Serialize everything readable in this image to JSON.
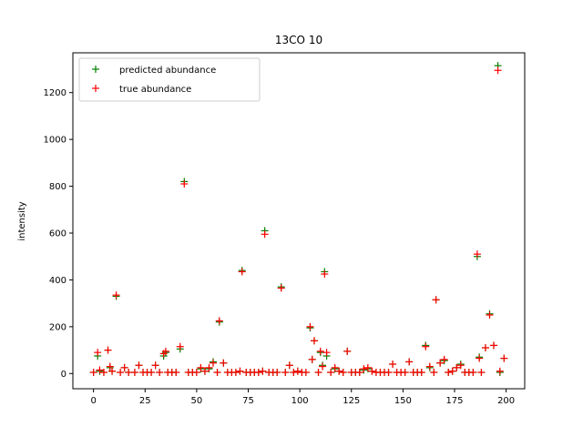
{
  "chart_data": {
    "type": "scatter",
    "title": "13CO 10",
    "xlabel": "",
    "ylabel": "intensity",
    "xlim": [
      -10,
      209
    ],
    "ylim": [
      -65,
      1370
    ],
    "xticks": [
      0,
      25,
      50,
      75,
      100,
      125,
      150,
      175,
      200
    ],
    "yticks": [
      0,
      200,
      400,
      600,
      800,
      1000,
      1200
    ],
    "grid": false,
    "legend_position": "upper-left",
    "marker": "+",
    "series": [
      {
        "name": "predicted abundance",
        "color": "#008000",
        "x": [
          0,
          2,
          3,
          5,
          7,
          8,
          9,
          11,
          13,
          15,
          17,
          20,
          22,
          24,
          26,
          28,
          30,
          32,
          34,
          35,
          36,
          38,
          40,
          42,
          44,
          46,
          48,
          50,
          52,
          54,
          56,
          58,
          60,
          61,
          63,
          65,
          67,
          69,
          71,
          72,
          74,
          76,
          78,
          80,
          82,
          83,
          85,
          87,
          89,
          91,
          93,
          95,
          97,
          99,
          101,
          103,
          105,
          106,
          107,
          109,
          110,
          111,
          112,
          113,
          115,
          117,
          119,
          121,
          123,
          125,
          127,
          129,
          131,
          133,
          135,
          137,
          139,
          141,
          143,
          145,
          147,
          149,
          151,
          153,
          155,
          157,
          159,
          161,
          163,
          165,
          166,
          168,
          170,
          172,
          174,
          176,
          178,
          180,
          182,
          184,
          186,
          187,
          188,
          190,
          192,
          194,
          196,
          197,
          199
        ],
        "y": [
          5,
          75,
          10,
          5,
          100,
          25,
          10,
          330,
          5,
          25,
          5,
          5,
          35,
          5,
          5,
          5,
          35,
          5,
          75,
          90,
          5,
          5,
          5,
          105,
          820,
          5,
          5,
          5,
          20,
          10,
          20,
          50,
          5,
          220,
          45,
          5,
          5,
          5,
          10,
          440,
          5,
          5,
          5,
          5,
          10,
          610,
          5,
          5,
          5,
          370,
          5,
          35,
          5,
          10,
          5,
          5,
          195,
          60,
          140,
          5,
          90,
          35,
          435,
          75,
          5,
          20,
          10,
          5,
          95,
          5,
          5,
          5,
          15,
          20,
          10,
          5,
          5,
          5,
          5,
          40,
          5,
          5,
          5,
          50,
          5,
          5,
          5,
          120,
          25,
          5,
          315,
          45,
          55,
          5,
          10,
          25,
          40,
          5,
          5,
          5,
          500,
          70,
          5,
          110,
          255,
          120,
          1315,
          5,
          65
        ]
      },
      {
        "name": "true abundance",
        "color": "#ff0000",
        "x": [
          0,
          2,
          3,
          5,
          7,
          8,
          9,
          11,
          13,
          15,
          17,
          20,
          22,
          24,
          26,
          28,
          30,
          32,
          34,
          35,
          36,
          38,
          40,
          42,
          44,
          46,
          48,
          50,
          52,
          54,
          56,
          58,
          60,
          61,
          63,
          65,
          67,
          69,
          71,
          72,
          74,
          76,
          78,
          80,
          82,
          83,
          85,
          87,
          89,
          91,
          93,
          95,
          97,
          99,
          101,
          103,
          105,
          106,
          107,
          109,
          110,
          111,
          112,
          113,
          115,
          117,
          119,
          121,
          123,
          125,
          127,
          129,
          131,
          133,
          135,
          137,
          139,
          141,
          143,
          145,
          147,
          149,
          151,
          153,
          155,
          157,
          159,
          161,
          163,
          165,
          166,
          168,
          170,
          172,
          174,
          176,
          178,
          180,
          182,
          184,
          186,
          187,
          188,
          190,
          192,
          194,
          196,
          197,
          199
        ],
        "y": [
          5,
          90,
          15,
          5,
          100,
          30,
          10,
          335,
          5,
          25,
          5,
          5,
          35,
          5,
          5,
          5,
          35,
          5,
          85,
          95,
          5,
          5,
          5,
          115,
          810,
          5,
          5,
          5,
          25,
          10,
          25,
          45,
          5,
          225,
          45,
          5,
          5,
          5,
          10,
          435,
          5,
          5,
          5,
          5,
          10,
          595,
          5,
          5,
          5,
          365,
          5,
          35,
          5,
          10,
          5,
          5,
          200,
          60,
          140,
          5,
          95,
          30,
          425,
          90,
          5,
          25,
          10,
          5,
          95,
          5,
          5,
          5,
          20,
          25,
          10,
          5,
          5,
          5,
          5,
          40,
          5,
          5,
          5,
          50,
          5,
          5,
          5,
          115,
          30,
          5,
          315,
          45,
          60,
          5,
          10,
          25,
          35,
          5,
          5,
          5,
          510,
          65,
          5,
          110,
          250,
          120,
          1295,
          10,
          65
        ]
      }
    ]
  }
}
